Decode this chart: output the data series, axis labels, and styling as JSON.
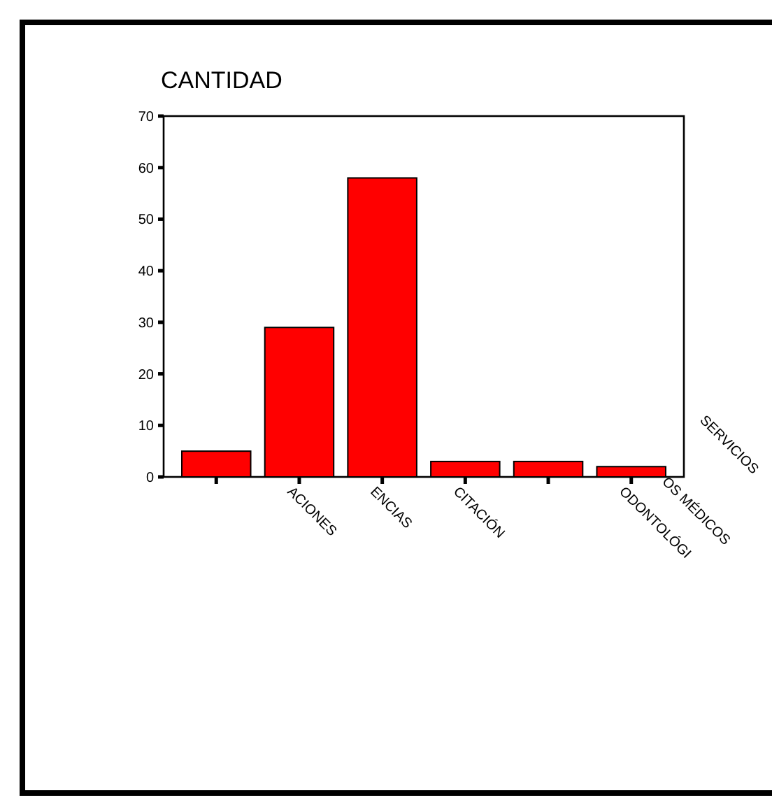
{
  "chart_data": {
    "type": "bar",
    "title": "CANTIDAD",
    "categories": [
      null,
      "ACIONES",
      "ENCIAS",
      "CITACIÓN",
      null,
      "ODONTOLÓGI"
    ],
    "values": [
      5,
      29,
      58,
      3,
      3,
      2
    ],
    "color": "#ff0000",
    "ylim": [
      0,
      70
    ],
    "yticks": [
      0,
      10,
      20,
      30,
      40,
      50,
      60,
      70
    ],
    "annotations": [
      "OS MÉDICOS",
      "SERVICIOS"
    ]
  }
}
